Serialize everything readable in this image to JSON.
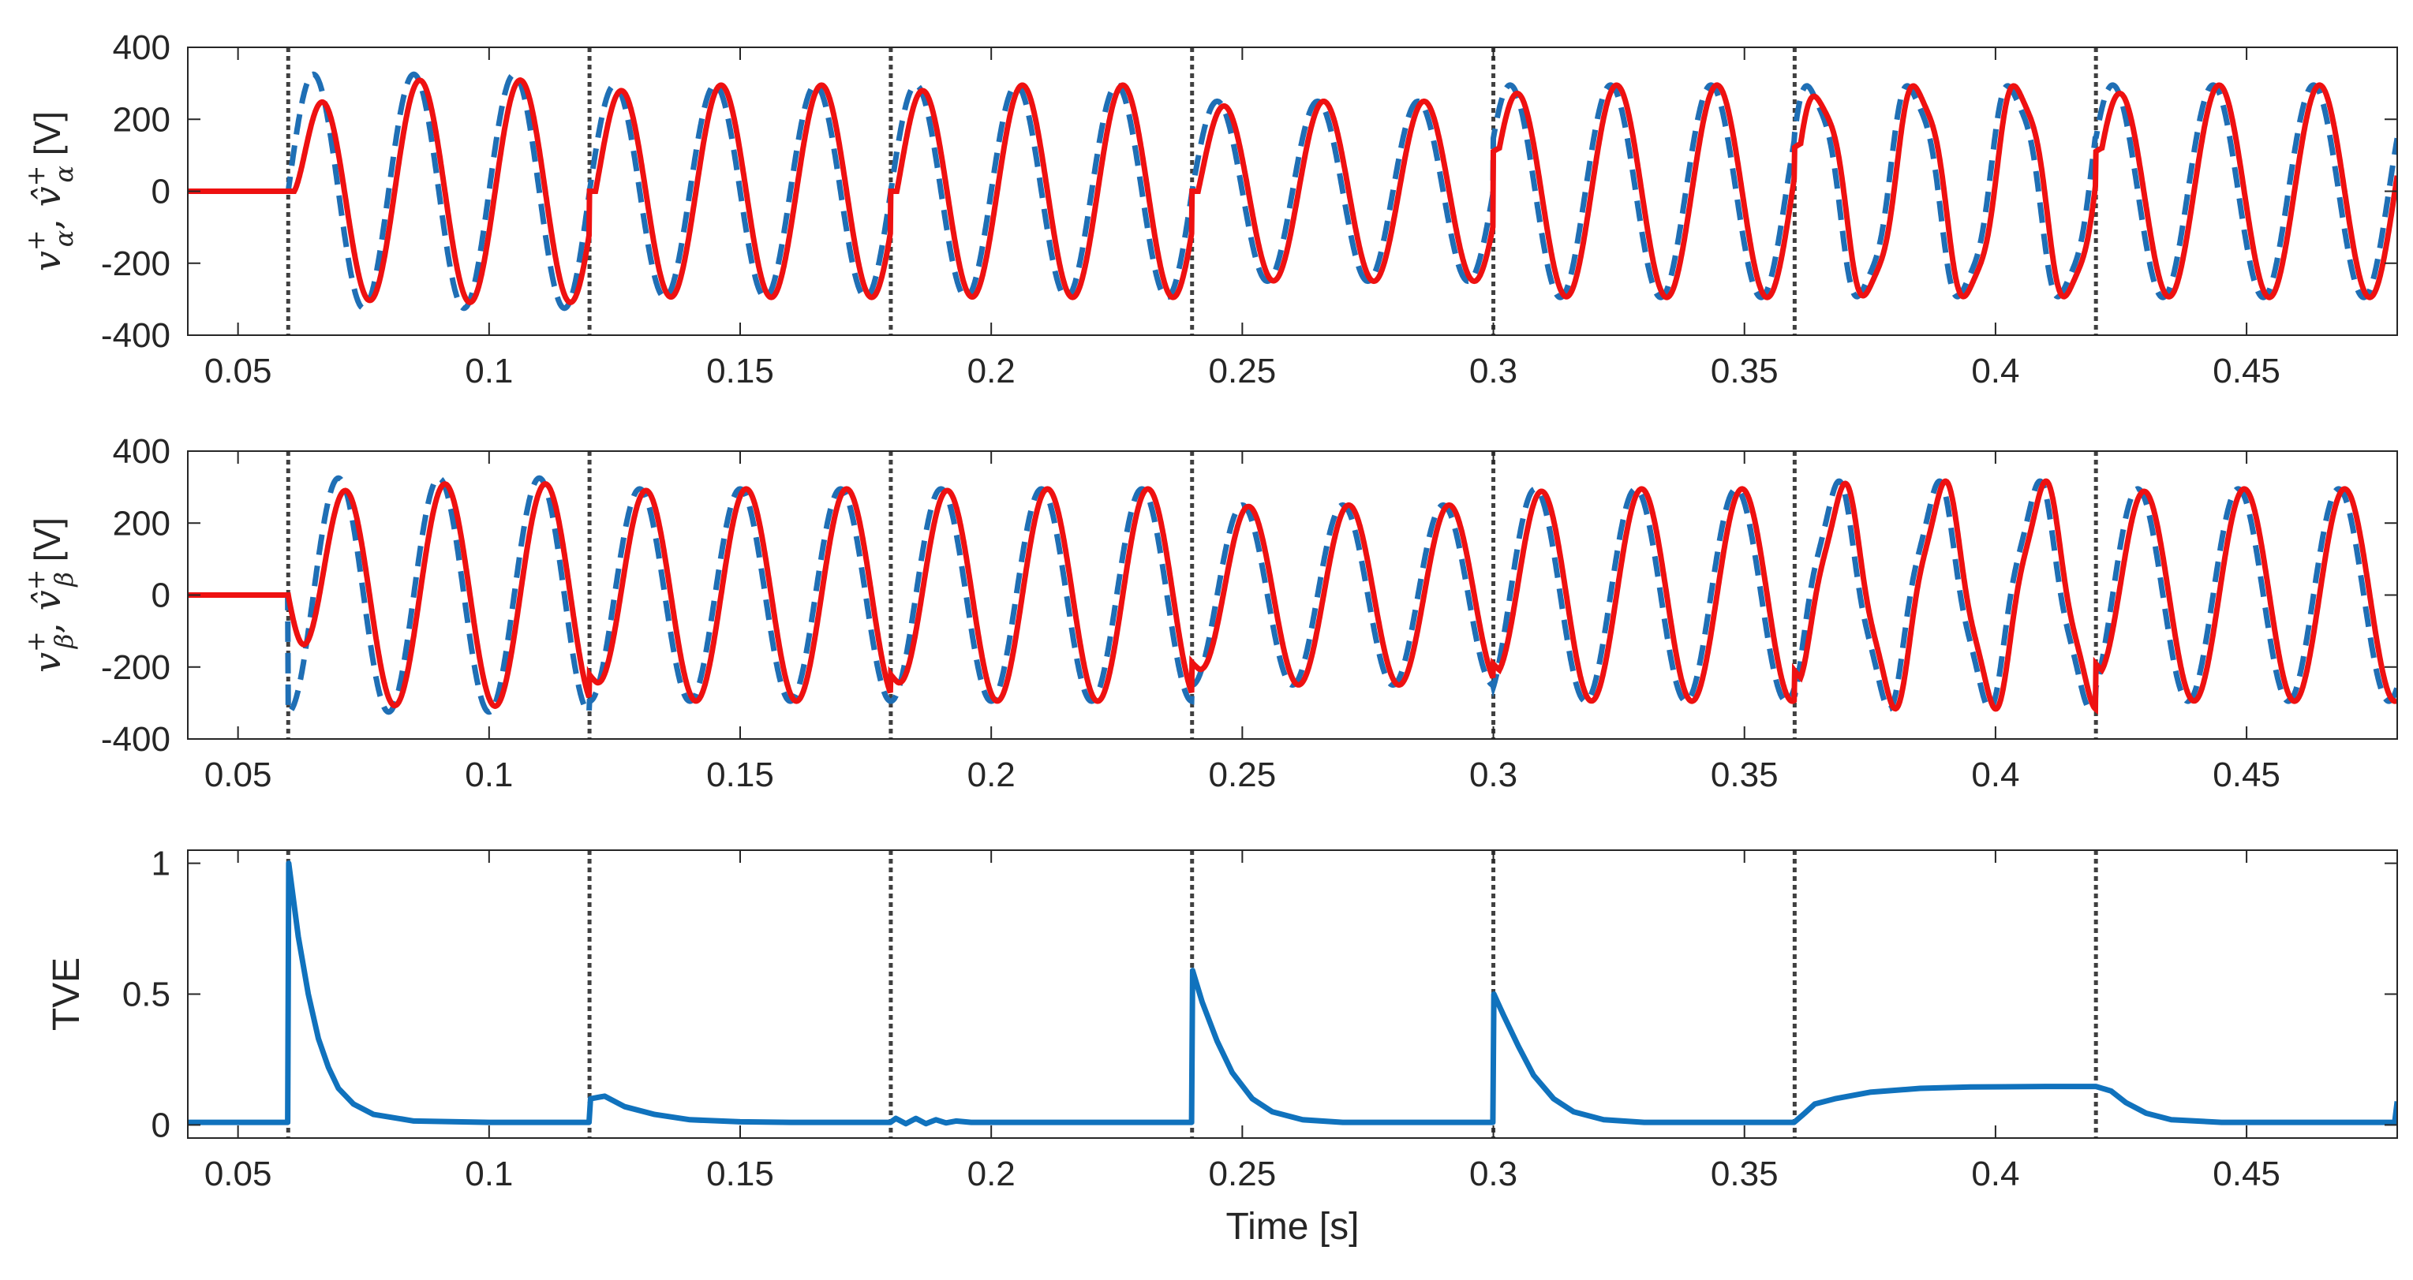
{
  "chart_data": [
    {
      "id": "alpha",
      "type": "line",
      "ylabel": "v_α^+, v̂_α^+ [V]",
      "ylabel_parts": {
        "sym1": "v",
        "sub1": "α",
        "sup1": "+",
        "sep": ", ",
        "sym2": "v̂",
        "sub2": "α",
        "sup2": "+",
        "unit": " [V]"
      },
      "xlim": [
        0.04,
        0.48
      ],
      "ylim": [
        -400,
        400
      ],
      "xticks": [
        "0.05",
        "0.1",
        "0.15",
        "0.2",
        "0.25",
        "0.3",
        "0.35",
        "0.4",
        "0.45"
      ],
      "yticks": [
        "-400",
        "-200",
        "0",
        "200",
        "400"
      ],
      "grid": false,
      "event_lines": [
        0.06,
        0.12,
        0.18,
        0.24,
        0.3,
        0.36,
        0.42
      ],
      "signal": {
        "t0": 0.06,
        "segments": [
          {
            "t": [
              0.06,
              0.12
            ],
            "amp": 325,
            "freq": 50,
            "phase_deg": 0
          },
          {
            "t": [
              0.12,
              0.18
            ],
            "amp": 295,
            "freq": 50,
            "phase_deg": 0
          },
          {
            "t": [
              0.18,
              0.24
            ],
            "amp": 295,
            "freq": 50,
            "phase_deg": 0
          },
          {
            "t": [
              0.24,
              0.3
            ],
            "amp": 250,
            "freq": 50,
            "phase_deg": 0
          },
          {
            "t": [
              0.3,
              0.36
            ],
            "amp": 295,
            "freq": 50,
            "phase_deg": 30
          },
          {
            "t": [
              0.36,
              0.42
            ],
            "amp": 295,
            "freq": 50,
            "phase_deg": 30,
            "harmonic_amp": 30
          },
          {
            "t": [
              0.42,
              0.48
            ],
            "amp": 295,
            "freq": 50,
            "phase_deg": 30
          }
        ]
      },
      "series": [
        {
          "role": "actual",
          "style": "dashed",
          "color": "#1f6fb5"
        },
        {
          "role": "estimated",
          "style": "solid",
          "color": "#ee1111"
        }
      ]
    },
    {
      "id": "beta",
      "type": "line",
      "ylabel": "v_β^+, v̂_β^+ [V]",
      "ylabel_parts": {
        "sym1": "v",
        "sub1": "β",
        "sup1": "+",
        "sep": ", ",
        "sym2": "v̂",
        "sub2": "β",
        "sup2": "+",
        "unit": " [V]"
      },
      "xlim": [
        0.04,
        0.48
      ],
      "ylim": [
        -400,
        400
      ],
      "xticks": [
        "0.05",
        "0.1",
        "0.15",
        "0.2",
        "0.25",
        "0.3",
        "0.35",
        "0.4",
        "0.45"
      ],
      "yticks": [
        "-400",
        "-200",
        "0",
        "200",
        "400"
      ],
      "grid": false,
      "event_lines": [
        0.06,
        0.12,
        0.18,
        0.24,
        0.3,
        0.36,
        0.42
      ],
      "signal": {
        "t0": 0.06,
        "segments": [
          {
            "t": [
              0.06,
              0.12
            ],
            "amp": 325,
            "freq": 50,
            "phase_deg": -90
          },
          {
            "t": [
              0.12,
              0.18
            ],
            "amp": 295,
            "freq": 50,
            "phase_deg": -90
          },
          {
            "t": [
              0.18,
              0.24
            ],
            "amp": 295,
            "freq": 50,
            "phase_deg": -90
          },
          {
            "t": [
              0.24,
              0.3
            ],
            "amp": 250,
            "freq": 50,
            "phase_deg": -90
          },
          {
            "t": [
              0.3,
              0.36
            ],
            "amp": 295,
            "freq": 50,
            "phase_deg": -60
          },
          {
            "t": [
              0.36,
              0.42
            ],
            "amp": 295,
            "freq": 50,
            "phase_deg": -60,
            "harmonic_amp": 30
          },
          {
            "t": [
              0.42,
              0.48
            ],
            "amp": 295,
            "freq": 50,
            "phase_deg": -60
          }
        ]
      },
      "series": [
        {
          "role": "actual",
          "style": "dashed",
          "color": "#1f6fb5"
        },
        {
          "role": "estimated",
          "style": "solid",
          "color": "#ee1111"
        }
      ]
    },
    {
      "id": "tve",
      "type": "line",
      "ylabel": "TVE",
      "xlabel": "Time [s]",
      "xlim": [
        0.04,
        0.48
      ],
      "ylim": [
        -0.05,
        1.05
      ],
      "xticks": [
        "0.05",
        "0.1",
        "0.15",
        "0.2",
        "0.25",
        "0.3",
        "0.35",
        "0.4",
        "0.45"
      ],
      "yticks": [
        "0",
        "0.5",
        "1"
      ],
      "grid": false,
      "event_lines": [
        0.06,
        0.12,
        0.18,
        0.24,
        0.3,
        0.36,
        0.42
      ],
      "series": [
        {
          "color": "#1072bd",
          "style": "solid",
          "points": [
            [
              0.04,
              0.01
            ],
            [
              0.0599,
              0.01
            ],
            [
              0.0601,
              1.0
            ],
            [
              0.062,
              0.72
            ],
            [
              0.064,
              0.5
            ],
            [
              0.066,
              0.33
            ],
            [
              0.068,
              0.22
            ],
            [
              0.07,
              0.14
            ],
            [
              0.073,
              0.08
            ],
            [
              0.077,
              0.04
            ],
            [
              0.085,
              0.015
            ],
            [
              0.1,
              0.01
            ],
            [
              0.1199,
              0.01
            ],
            [
              0.1202,
              0.1
            ],
            [
              0.123,
              0.11
            ],
            [
              0.127,
              0.07
            ],
            [
              0.133,
              0.04
            ],
            [
              0.14,
              0.02
            ],
            [
              0.15,
              0.012
            ],
            [
              0.16,
              0.01
            ],
            [
              0.1799,
              0.01
            ],
            [
              0.181,
              0.025
            ],
            [
              0.183,
              0.005
            ],
            [
              0.185,
              0.025
            ],
            [
              0.187,
              0.005
            ],
            [
              0.189,
              0.02
            ],
            [
              0.191,
              0.008
            ],
            [
              0.193,
              0.015
            ],
            [
              0.196,
              0.01
            ],
            [
              0.2399,
              0.01
            ],
            [
              0.2401,
              0.59
            ],
            [
              0.242,
              0.47
            ],
            [
              0.245,
              0.32
            ],
            [
              0.248,
              0.2
            ],
            [
              0.252,
              0.1
            ],
            [
              0.256,
              0.05
            ],
            [
              0.262,
              0.02
            ],
            [
              0.27,
              0.01
            ],
            [
              0.2999,
              0.01
            ],
            [
              0.3001,
              0.5
            ],
            [
              0.302,
              0.42
            ],
            [
              0.305,
              0.3
            ],
            [
              0.308,
              0.19
            ],
            [
              0.312,
              0.1
            ],
            [
              0.316,
              0.05
            ],
            [
              0.322,
              0.02
            ],
            [
              0.33,
              0.01
            ],
            [
              0.3599,
              0.01
            ],
            [
              0.362,
              0.045
            ],
            [
              0.364,
              0.08
            ],
            [
              0.368,
              0.1
            ],
            [
              0.375,
              0.125
            ],
            [
              0.385,
              0.14
            ],
            [
              0.395,
              0.145
            ],
            [
              0.41,
              0.147
            ],
            [
              0.42,
              0.147
            ],
            [
              0.423,
              0.13
            ],
            [
              0.426,
              0.085
            ],
            [
              0.43,
              0.045
            ],
            [
              0.435,
              0.02
            ],
            [
              0.445,
              0.01
            ],
            [
              0.4795,
              0.01
            ],
            [
              0.48,
              0.09
            ]
          ]
        }
      ]
    }
  ]
}
